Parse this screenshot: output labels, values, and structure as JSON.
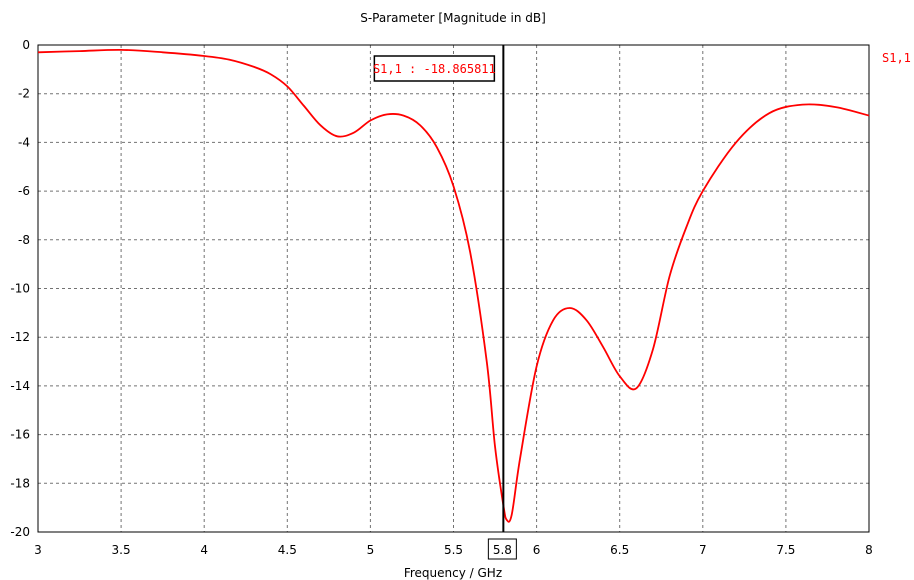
{
  "chart_data": {
    "type": "line",
    "title": "S-Parameter [Magnitude in dB]",
    "xlabel": "Frequency / GHz",
    "ylabel": "",
    "xlim": [
      3,
      8
    ],
    "ylim": [
      -20,
      0
    ],
    "x_ticks": [
      "3",
      "3.5",
      "4",
      "4.5",
      "5",
      "5.5",
      "6",
      "6.5",
      "7",
      "7.5",
      "8"
    ],
    "x_tick_values": [
      3,
      3.5,
      4,
      4.5,
      5,
      5.5,
      6,
      6.5,
      7,
      7.5,
      8
    ],
    "y_ticks": [
      "0",
      "-2",
      "-4",
      "-6",
      "-8",
      "-10",
      "-12",
      "-14",
      "-16",
      "-18",
      "-20"
    ],
    "y_tick_values": [
      0,
      -2,
      -4,
      -6,
      -8,
      -10,
      -12,
      -14,
      -16,
      -18,
      -20
    ],
    "grid": true,
    "legend_position": "top-right",
    "colors": {
      "series": "#ff0000",
      "grid": "#000000",
      "marker": "#000000"
    },
    "series": [
      {
        "name": "S1,1",
        "x": [
          3.0,
          3.25,
          3.5,
          3.75,
          4.0,
          4.15,
          4.3,
          4.4,
          4.5,
          4.6,
          4.7,
          4.8,
          4.9,
          5.0,
          5.1,
          5.2,
          5.3,
          5.4,
          5.5,
          5.6,
          5.7,
          5.75,
          5.8,
          5.82,
          5.85,
          5.9,
          6.0,
          6.1,
          6.2,
          6.3,
          6.4,
          6.5,
          6.6,
          6.7,
          6.8,
          6.9,
          7.0,
          7.2,
          7.4,
          7.6,
          7.8,
          8.0
        ],
        "y": [
          -0.3,
          -0.25,
          -0.2,
          -0.3,
          -0.45,
          -0.6,
          -0.9,
          -1.2,
          -1.7,
          -2.5,
          -3.3,
          -3.75,
          -3.6,
          -3.1,
          -2.85,
          -2.9,
          -3.3,
          -4.2,
          -5.8,
          -8.5,
          -13.0,
          -16.5,
          -18.9,
          -19.5,
          -19.3,
          -17.0,
          -13.2,
          -11.3,
          -10.8,
          -11.3,
          -12.4,
          -13.6,
          -14.1,
          -12.5,
          -9.5,
          -7.5,
          -6.0,
          -4.0,
          -2.8,
          -2.45,
          -2.55,
          -2.9
        ]
      }
    ],
    "marker": {
      "x": 5.8,
      "x_label": "5.8",
      "label": "S1,1 : -18.865811"
    }
  }
}
